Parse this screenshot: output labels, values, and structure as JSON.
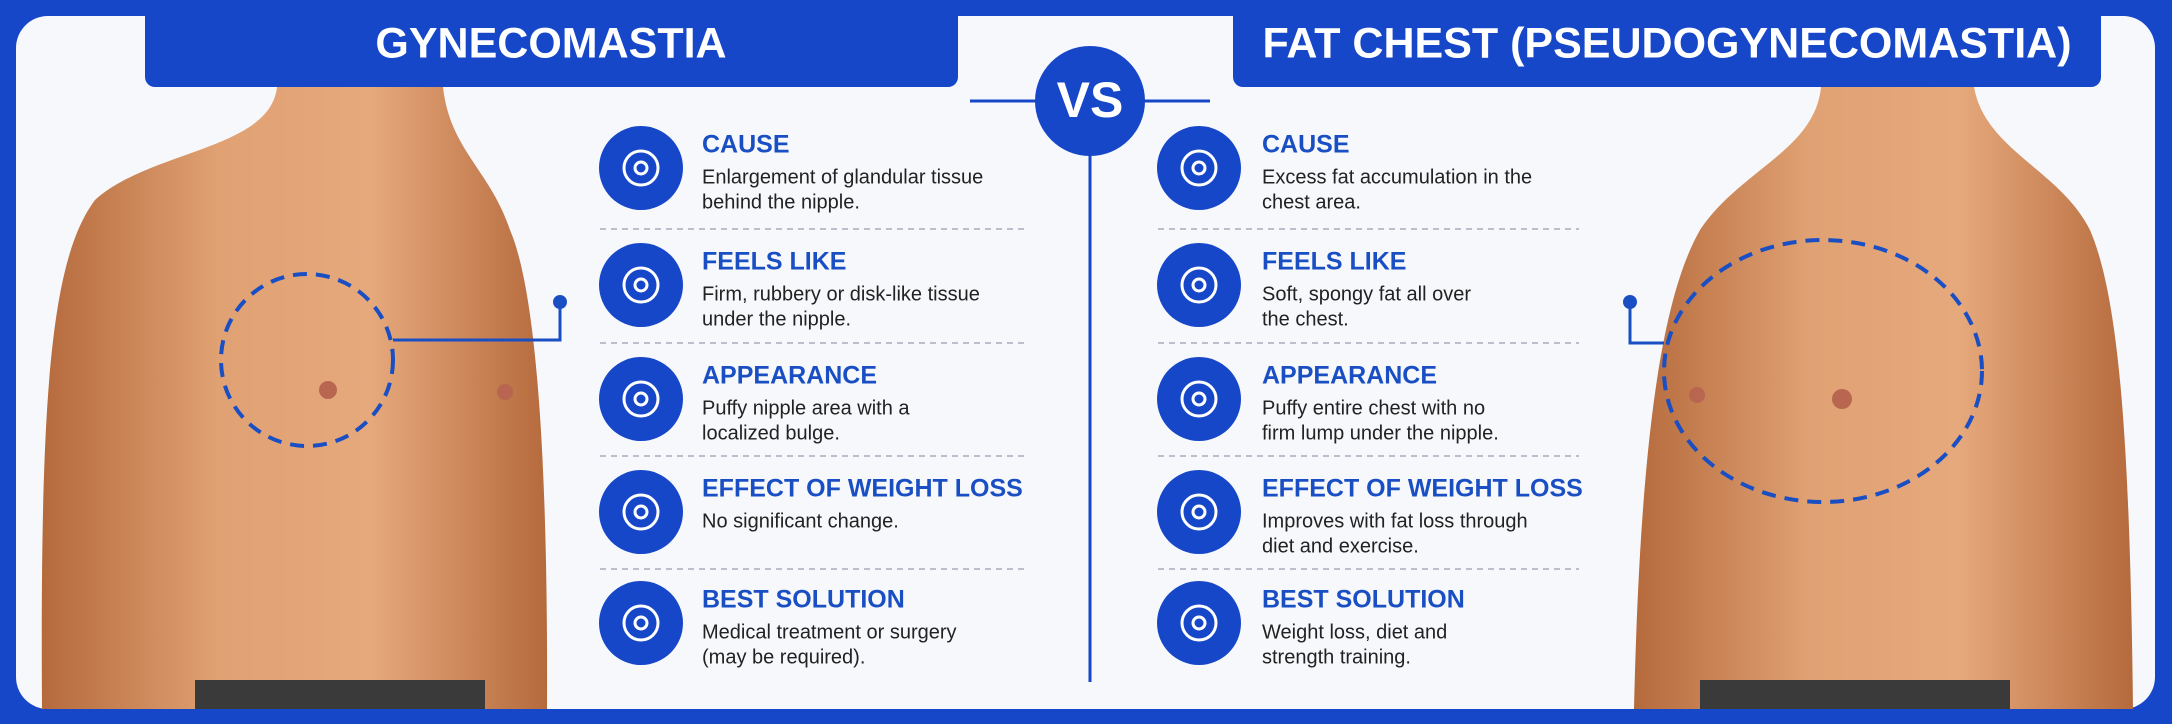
{
  "left": {
    "title": "GYNECOMASTIA",
    "rows": [
      {
        "heading": "CAUSE",
        "lines": [
          "Enlargement of glandular tissue",
          "behind the nipple."
        ]
      },
      {
        "heading": "FEELS LIKE",
        "lines": [
          "Firm, rubbery or disk-like tissue",
          "under the nipple."
        ]
      },
      {
        "heading": "APPEARANCE",
        "lines": [
          "Puffy nipple area with a",
          "localized bulge."
        ]
      },
      {
        "heading": "EFFECT OF WEIGHT LOSS",
        "lines": [
          "No significant change."
        ]
      },
      {
        "heading": "BEST SOLUTION",
        "lines": [
          "Medical treatment or surgery",
          "(may be required)."
        ]
      }
    ]
  },
  "vs": "VS",
  "right": {
    "title": "FAT CHEST (PSEUDOGYNECOMASTIA)",
    "rows": [
      {
        "heading": "CAUSE",
        "lines": [
          "Excess fat accumulation in the",
          "chest area."
        ]
      },
      {
        "heading": "FEELS LIKE",
        "lines": [
          "Soft, spongy fat all over",
          "the chest."
        ]
      },
      {
        "heading": "APPEARANCE",
        "lines": [
          "Puffy entire chest with no",
          "firm lump under the nipple."
        ]
      },
      {
        "heading": "EFFECT OF WEIGHT LOSS",
        "lines": [
          "Improves with fat loss through",
          "diet and exercise."
        ]
      },
      {
        "heading": "BEST SOLUTION",
        "lines": [
          "Weight loss, diet and",
          "strength training."
        ]
      }
    ]
  }
}
